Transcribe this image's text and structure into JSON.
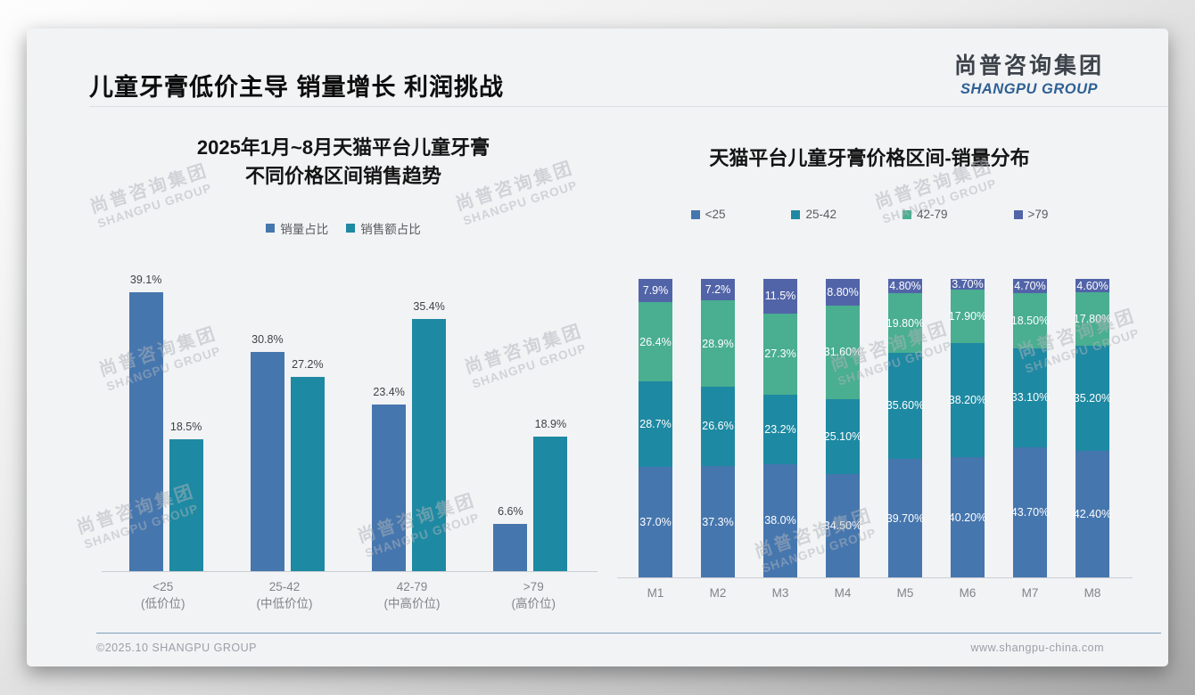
{
  "page": {
    "title": "儿童牙膏低价主导 销量增长 利润挑战",
    "logo": {
      "cn": "尚普咨询集团",
      "en": "SHANGPU GROUP"
    },
    "watermark": {
      "cn": "尚普咨询集团",
      "en": "SHANGPU GROUP"
    },
    "footer": {
      "left": "©2025.10 SHANGPU GROUP",
      "right": "www.shangpu-china.com"
    }
  },
  "colors": {
    "bar_blue": "#4676ae",
    "bar_teal": "#1e89a2",
    "bar_green": "#4aae90",
    "bar_indigo": "#5264a8",
    "slide_bg": "#f2f3f5",
    "footer_rule": "#7e9dbd"
  },
  "chart_data": [
    {
      "type": "bar",
      "title": "2025年1月~8月天猫平台儿童牙膏 不同价格区间销售趋势",
      "title_lines": [
        "2025年1月~8月天猫平台儿童牙膏",
        "不同价格区间销售趋势"
      ],
      "categories": [
        "<25",
        "25-42",
        "42-79",
        ">79"
      ],
      "category_sublabels": [
        "(低价位)",
        "(中低价位)",
        "(中高价位)",
        "(高价位)"
      ],
      "series": [
        {
          "name": "销量占比",
          "color": "#4676ae",
          "values": [
            39.1,
            30.8,
            23.4,
            6.6
          ],
          "labels": [
            "39.1%",
            "30.8%",
            "23.4%",
            "6.6%"
          ]
        },
        {
          "name": "销售额占比",
          "color": "#1e89a2",
          "values": [
            18.5,
            27.2,
            35.4,
            18.9
          ],
          "labels": [
            "18.5%",
            "27.2%",
            "35.4%",
            "18.9%"
          ]
        }
      ],
      "xlabel": "",
      "ylabel": "",
      "ylim": [
        0,
        40
      ],
      "grid": false,
      "legend_position": "top"
    },
    {
      "type": "stacked-bar",
      "title": "天猫平台儿童牙膏价格区间-销量分布",
      "categories": [
        "M1",
        "M2",
        "M3",
        "M4",
        "M5",
        "M6",
        "M7",
        "M8"
      ],
      "series": [
        {
          "name": "<25",
          "color": "#4676ae",
          "values": [
            37.0,
            37.3,
            38.0,
            34.5,
            39.7,
            40.2,
            43.7,
            42.4
          ],
          "labels": [
            "37.0%",
            "37.3%",
            "38.0%",
            "34.50%",
            "39.70%",
            "40.20%",
            "43.70%",
            "42.40%"
          ]
        },
        {
          "name": "25-42",
          "color": "#1e89a2",
          "values": [
            28.7,
            26.6,
            23.2,
            25.1,
            35.6,
            38.2,
            33.1,
            35.2
          ],
          "labels": [
            "28.7%",
            "26.6%",
            "23.2%",
            "25.10%",
            "35.60%",
            "38.20%",
            "33.10%",
            "35.20%"
          ]
        },
        {
          "name": "42-79",
          "color": "#4aae90",
          "values": [
            26.4,
            28.9,
            27.3,
            31.6,
            19.8,
            17.9,
            18.5,
            17.8
          ],
          "labels": [
            "26.4%",
            "28.9%",
            "27.3%",
            "31.60%",
            "19.80%",
            "17.90%",
            "18.50%",
            "17.80%"
          ]
        },
        {
          "name": ">79",
          "color": "#5264a8",
          "values": [
            7.9,
            7.2,
            11.5,
            8.8,
            4.8,
            3.7,
            4.7,
            4.6
          ],
          "labels": [
            "7.9%",
            "7.2%",
            "11.5%",
            "8.80%",
            "4.80%",
            "3.70%",
            "4.70%",
            "4.60%"
          ]
        }
      ],
      "xlabel": "",
      "ylabel": "",
      "ylim": [
        0,
        100
      ],
      "grid": false,
      "legend_position": "top"
    }
  ]
}
